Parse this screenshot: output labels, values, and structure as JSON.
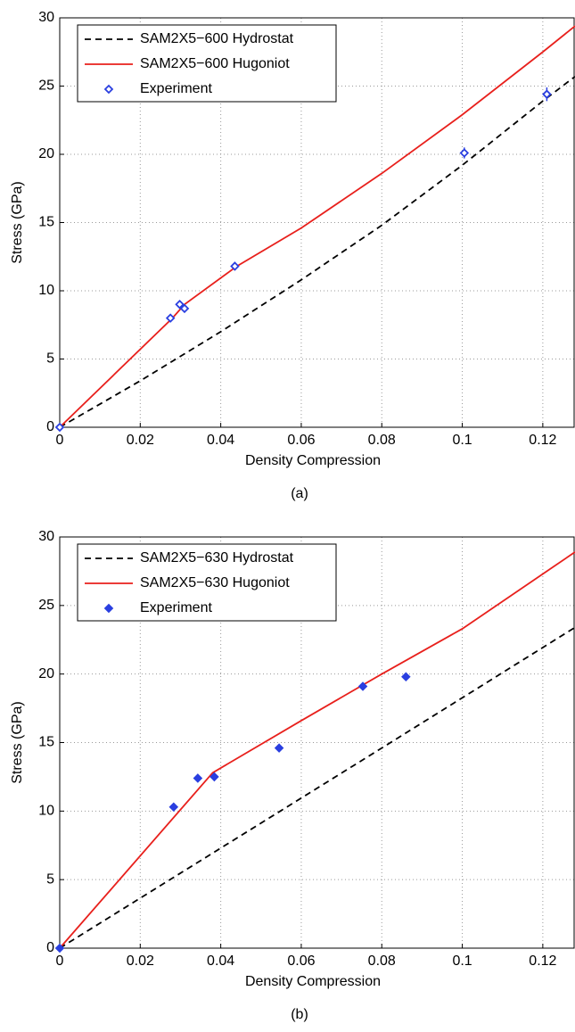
{
  "chart_data": [
    {
      "type": "line",
      "caption": "(a)",
      "x_label": "Density Compression",
      "y_label": "Stress (GPa)",
      "xlim": [
        0,
        0.128
      ],
      "ylim": [
        0,
        30
      ],
      "xticks": [
        0,
        0.02,
        0.04,
        0.06,
        0.08,
        0.1,
        0.12
      ],
      "yticks": [
        0,
        5,
        10,
        15,
        20,
        25,
        30
      ],
      "grid": true,
      "legend": "upper left",
      "series": [
        {
          "name": "SAM2X5−600 Hydrostat",
          "color": "#000000",
          "style": "dashed",
          "x": [
            0,
            0.02,
            0.04,
            0.06,
            0.08,
            0.1,
            0.12,
            0.128
          ],
          "values": [
            0,
            3.4,
            7.0,
            10.8,
            14.8,
            19.2,
            23.9,
            25.7
          ]
        },
        {
          "name": "SAM2X5−600 Hugoniot",
          "color": "#e8201c",
          "style": "solid",
          "x": [
            0,
            0.028,
            0.031,
            0.044,
            0.06,
            0.08,
            0.1,
            0.12,
            0.128
          ],
          "values": [
            0,
            8.0,
            9.0,
            11.8,
            14.6,
            18.6,
            22.9,
            27.5,
            29.4
          ]
        },
        {
          "name": "Experiment",
          "color": "#2a3fe0",
          "style": "markers",
          "marker_fill": false,
          "x": [
            0,
            0.0275,
            0.0298,
            0.031,
            0.0435,
            0.1005,
            0.121
          ],
          "values": [
            0,
            8.0,
            9.0,
            8.7,
            11.8,
            20.1,
            24.4
          ],
          "errors": [
            0.1,
            0.2,
            0.2,
            0.2,
            0.3,
            0.4,
            0.5
          ]
        }
      ]
    },
    {
      "type": "line",
      "caption": "(b)",
      "x_label": "Density Compression",
      "y_label": "Stress (GPa)",
      "xlim": [
        0,
        0.128
      ],
      "ylim": [
        0,
        30
      ],
      "xticks": [
        0,
        0.02,
        0.04,
        0.06,
        0.08,
        0.1,
        0.12
      ],
      "yticks": [
        0,
        5,
        10,
        15,
        20,
        25,
        30
      ],
      "grid": true,
      "legend": "upper left",
      "series": [
        {
          "name": "SAM2X5−630 Hydrostat",
          "color": "#000000",
          "style": "dashed",
          "x": [
            0,
            0.04,
            0.08,
            0.128
          ],
          "values": [
            0,
            7.3,
            14.6,
            23.4
          ]
        },
        {
          "name": "SAM2X5−630 Hugoniot",
          "color": "#e8201c",
          "style": "solid",
          "x": [
            0,
            0.038,
            0.06,
            0.08,
            0.1,
            0.128
          ],
          "values": [
            0,
            12.8,
            16.6,
            20.0,
            23.3,
            28.9
          ]
        },
        {
          "name": "Experiment",
          "color": "#2a3fe0",
          "style": "markers",
          "marker_fill": true,
          "x": [
            0,
            0.0283,
            0.0343,
            0.0384,
            0.0545,
            0.0753,
            0.086
          ],
          "values": [
            0,
            10.3,
            12.4,
            12.5,
            14.6,
            19.1,
            19.8
          ]
        }
      ]
    }
  ]
}
